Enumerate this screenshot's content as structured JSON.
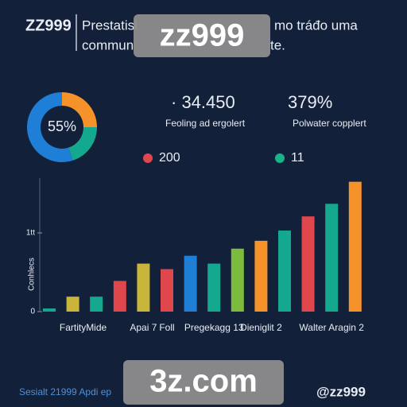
{
  "header": {
    "brand": "ZZ999",
    "lines": [
      "Prestatisl",
      "mo tráđo uma",
      "commun",
      "te."
    ]
  },
  "overlays": [
    "zz999",
    "3z.com"
  ],
  "stats": [
    {
      "value": "· 34.450",
      "label": "Feoling ad ergolert"
    },
    {
      "value": "379%",
      "label": "Polwater copplert"
    }
  ],
  "legend": [
    {
      "text": "200",
      "color": "#e0474c"
    },
    {
      "text": "11",
      "color": "#18b38a"
    }
  ],
  "footer": {
    "left": "Sesialt 21999 Apdi ep",
    "right": "@zz999"
  },
  "chart_data": [
    {
      "type": "pie",
      "center_label": "55%",
      "values": [
        25,
        20,
        55
      ],
      "colors": [
        "#f5922a",
        "#14a98e",
        "#1f7fd6"
      ]
    },
    {
      "type": "bar",
      "ylabel": "Conhlecs",
      "categories": [
        null,
        "Fartity",
        "Mide",
        null,
        "Apai 7",
        "Foll",
        null,
        "Pregekagg 13",
        null,
        "Dieniglit 2",
        null,
        null,
        "Walter Aragin 2",
        null
      ],
      "values": [
        4,
        19,
        19,
        39,
        61,
        54,
        71,
        61,
        80,
        90,
        103,
        121,
        137,
        165
      ],
      "colors": [
        "#14a98e",
        "#c9b53a",
        "#14a98e",
        "#e0474c",
        "#c9b53a",
        "#e0474c",
        "#1f7fd6",
        "#14a98e",
        "#7dbb3c",
        "#f5922a",
        "#14a98e",
        "#e0474c",
        "#14a98e",
        "#f5922a"
      ],
      "ylim": [
        0,
        170
      ],
      "yticks": [
        0,
        {
          "value": 100,
          "label": "1tt"
        }
      ]
    }
  ]
}
